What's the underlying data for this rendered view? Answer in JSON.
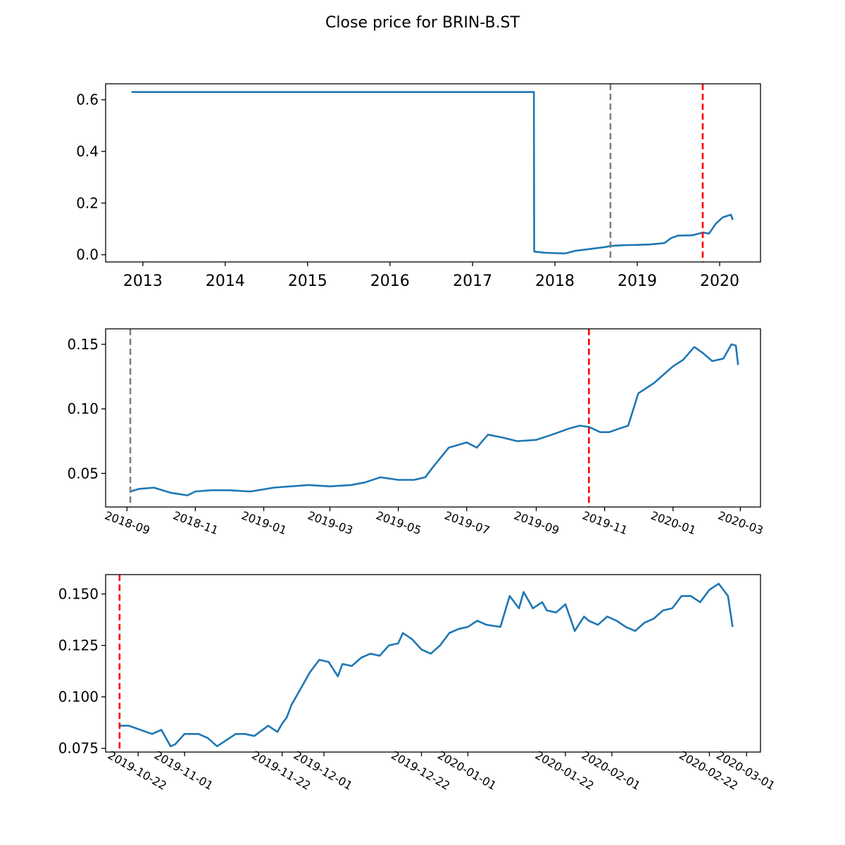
{
  "title": "Close price for BRIN-B.ST",
  "colors": {
    "series": "#1f77b4",
    "vline_gray": "#808080",
    "vline_red": "#ff0000",
    "axes": "#000000"
  },
  "chart_data": [
    {
      "type": "line",
      "panel": "full",
      "xlabel": "",
      "ylabel": "",
      "xlim": [
        "2012-07-20",
        "2020-06-30"
      ],
      "ylim": [
        -0.028,
        0.662
      ],
      "x_ticks": [
        "2013",
        "2014",
        "2015",
        "2016",
        "2017",
        "2018",
        "2019",
        "2020"
      ],
      "y_ticks": [
        "0.0",
        "0.2",
        "0.4",
        "0.6"
      ],
      "vlines": [
        {
          "x": "2018-09-04",
          "color": "gray"
        },
        {
          "x": "2019-10-18",
          "color": "red"
        }
      ],
      "series": [
        {
          "x": [
            "2012-11-12",
            "2017-09-30",
            "2017-10-01",
            "2017-11-15",
            "2018-01-01",
            "2018-02-15",
            "2018-04-01",
            "2018-05-15",
            "2018-07-01",
            "2018-08-15",
            "2018-09-04",
            "2018-11-01",
            "2019-01-01",
            "2019-03-01",
            "2019-05-01",
            "2019-06-01",
            "2019-07-01",
            "2019-09-01",
            "2019-10-18",
            "2019-11-15",
            "2019-12-15",
            "2020-01-15",
            "2020-02-20",
            "2020-02-28"
          ],
          "y": [
            0.63,
            0.63,
            0.012,
            0.008,
            0.006,
            0.005,
            0.015,
            0.02,
            0.025,
            0.03,
            0.034,
            0.037,
            0.038,
            0.04,
            0.045,
            0.065,
            0.074,
            0.075,
            0.086,
            0.082,
            0.12,
            0.145,
            0.155,
            0.135
          ]
        }
      ]
    },
    {
      "type": "line",
      "panel": "last-18-months",
      "xlabel": "",
      "ylabel": "",
      "xlim": [
        "2018-08-13",
        "2020-03-19"
      ],
      "ylim": [
        0.024,
        0.162
      ],
      "x_ticks": [
        "2018-09",
        "2018-11",
        "2019-01",
        "2019-03",
        "2019-05",
        "2019-07",
        "2019-09",
        "2019-11",
        "2020-01",
        "2020-03"
      ],
      "y_ticks": [
        "0.05",
        "0.10",
        "0.15"
      ],
      "vlines": [
        {
          "x": "2018-09-04",
          "color": "gray"
        },
        {
          "x": "2019-10-18",
          "color": "red"
        }
      ],
      "series": [
        {
          "x": [
            "2018-09-04",
            "2018-09-12",
            "2018-09-25",
            "2018-10-10",
            "2018-10-25",
            "2018-11-01",
            "2018-11-15",
            "2018-12-01",
            "2018-12-20",
            "2019-01-10",
            "2019-01-25",
            "2019-02-10",
            "2019-03-01",
            "2019-03-20",
            "2019-04-01",
            "2019-04-15",
            "2019-05-01",
            "2019-05-15",
            "2019-05-25",
            "2019-06-01",
            "2019-06-15",
            "2019-07-01",
            "2019-07-10",
            "2019-07-20",
            "2019-08-01",
            "2019-08-15",
            "2019-09-01",
            "2019-09-15",
            "2019-10-01",
            "2019-10-10",
            "2019-10-18",
            "2019-10-28",
            "2019-11-05",
            "2019-11-15",
            "2019-11-22",
            "2019-12-01",
            "2019-12-15",
            "2020-01-01",
            "2020-01-10",
            "2020-01-20",
            "2020-01-28",
            "2020-02-05",
            "2020-02-15",
            "2020-02-22",
            "2020-02-26",
            "2020-02-28"
          ],
          "y": [
            0.036,
            0.038,
            0.039,
            0.035,
            0.033,
            0.036,
            0.037,
            0.037,
            0.036,
            0.039,
            0.04,
            0.041,
            0.04,
            0.041,
            0.043,
            0.047,
            0.045,
            0.045,
            0.047,
            0.055,
            0.07,
            0.074,
            0.07,
            0.08,
            0.078,
            0.075,
            0.076,
            0.08,
            0.085,
            0.087,
            0.086,
            0.082,
            0.082,
            0.085,
            0.087,
            0.112,
            0.12,
            0.133,
            0.138,
            0.148,
            0.143,
            0.137,
            0.139,
            0.15,
            0.149,
            0.134
          ]
        }
      ]
    },
    {
      "type": "line",
      "panel": "since-last-marker",
      "xlabel": "",
      "ylabel": "",
      "xlim": [
        "2019-10-15",
        "2020-03-04"
      ],
      "ylim": [
        0.0732,
        0.1594
      ],
      "x_ticks": [
        "2019-10-22",
        "2019-11-01",
        "2019-11-22",
        "2019-12-01",
        "2019-12-22",
        "2020-01-01",
        "2020-01-22",
        "2020-02-01",
        "2020-02-22",
        "2020-03-01"
      ],
      "y_ticks": [
        "0.075",
        "0.100",
        "0.125",
        "0.150"
      ],
      "vlines": [
        {
          "x": "2019-10-18",
          "color": "red"
        }
      ],
      "series": [
        {
          "x": [
            "2019-10-18",
            "2019-10-20",
            "2019-10-25",
            "2019-10-27",
            "2019-10-29",
            "2019-10-30",
            "2019-11-01",
            "2019-11-04",
            "2019-11-06",
            "2019-11-08",
            "2019-11-12",
            "2019-11-14",
            "2019-11-16",
            "2019-11-19",
            "2019-11-21",
            "2019-11-22",
            "2019-11-23",
            "2019-11-24",
            "2019-11-26",
            "2019-11-28",
            "2019-11-30",
            "2019-12-02",
            "2019-12-04",
            "2019-12-05",
            "2019-12-07",
            "2019-12-09",
            "2019-12-11",
            "2019-12-13",
            "2019-12-15",
            "2019-12-17",
            "2019-12-18",
            "2019-12-20",
            "2019-12-22",
            "2019-12-24",
            "2019-12-26",
            "2019-12-28",
            "2019-12-30",
            "2020-01-01",
            "2020-01-03",
            "2020-01-05",
            "2020-01-08",
            "2020-01-10",
            "2020-01-12",
            "2020-01-13",
            "2020-01-15",
            "2020-01-17",
            "2020-01-18",
            "2020-01-20",
            "2020-01-22",
            "2020-01-24",
            "2020-01-26",
            "2020-01-27",
            "2020-01-29",
            "2020-01-31",
            "2020-02-02",
            "2020-02-04",
            "2020-02-06",
            "2020-02-08",
            "2020-02-10",
            "2020-02-12",
            "2020-02-14",
            "2020-02-16",
            "2020-02-18",
            "2020-02-20",
            "2020-02-22",
            "2020-02-24",
            "2020-02-26",
            "2020-02-27"
          ],
          "y": [
            0.086,
            0.086,
            0.082,
            0.084,
            0.076,
            0.077,
            0.082,
            0.082,
            0.08,
            0.076,
            0.082,
            0.082,
            0.081,
            0.086,
            0.083,
            0.087,
            0.09,
            0.096,
            0.104,
            0.112,
            0.118,
            0.117,
            0.11,
            0.116,
            0.115,
            0.119,
            0.121,
            0.12,
            0.125,
            0.126,
            0.131,
            0.128,
            0.123,
            0.121,
            0.125,
            0.131,
            0.133,
            0.134,
            0.137,
            0.135,
            0.134,
            0.149,
            0.143,
            0.151,
            0.143,
            0.146,
            0.142,
            0.141,
            0.145,
            0.132,
            0.139,
            0.137,
            0.135,
            0.139,
            0.137,
            0.134,
            0.132,
            0.136,
            0.138,
            0.142,
            0.143,
            0.149,
            0.149,
            0.146,
            0.152,
            0.155,
            0.149,
            0.134
          ]
        }
      ]
    }
  ]
}
